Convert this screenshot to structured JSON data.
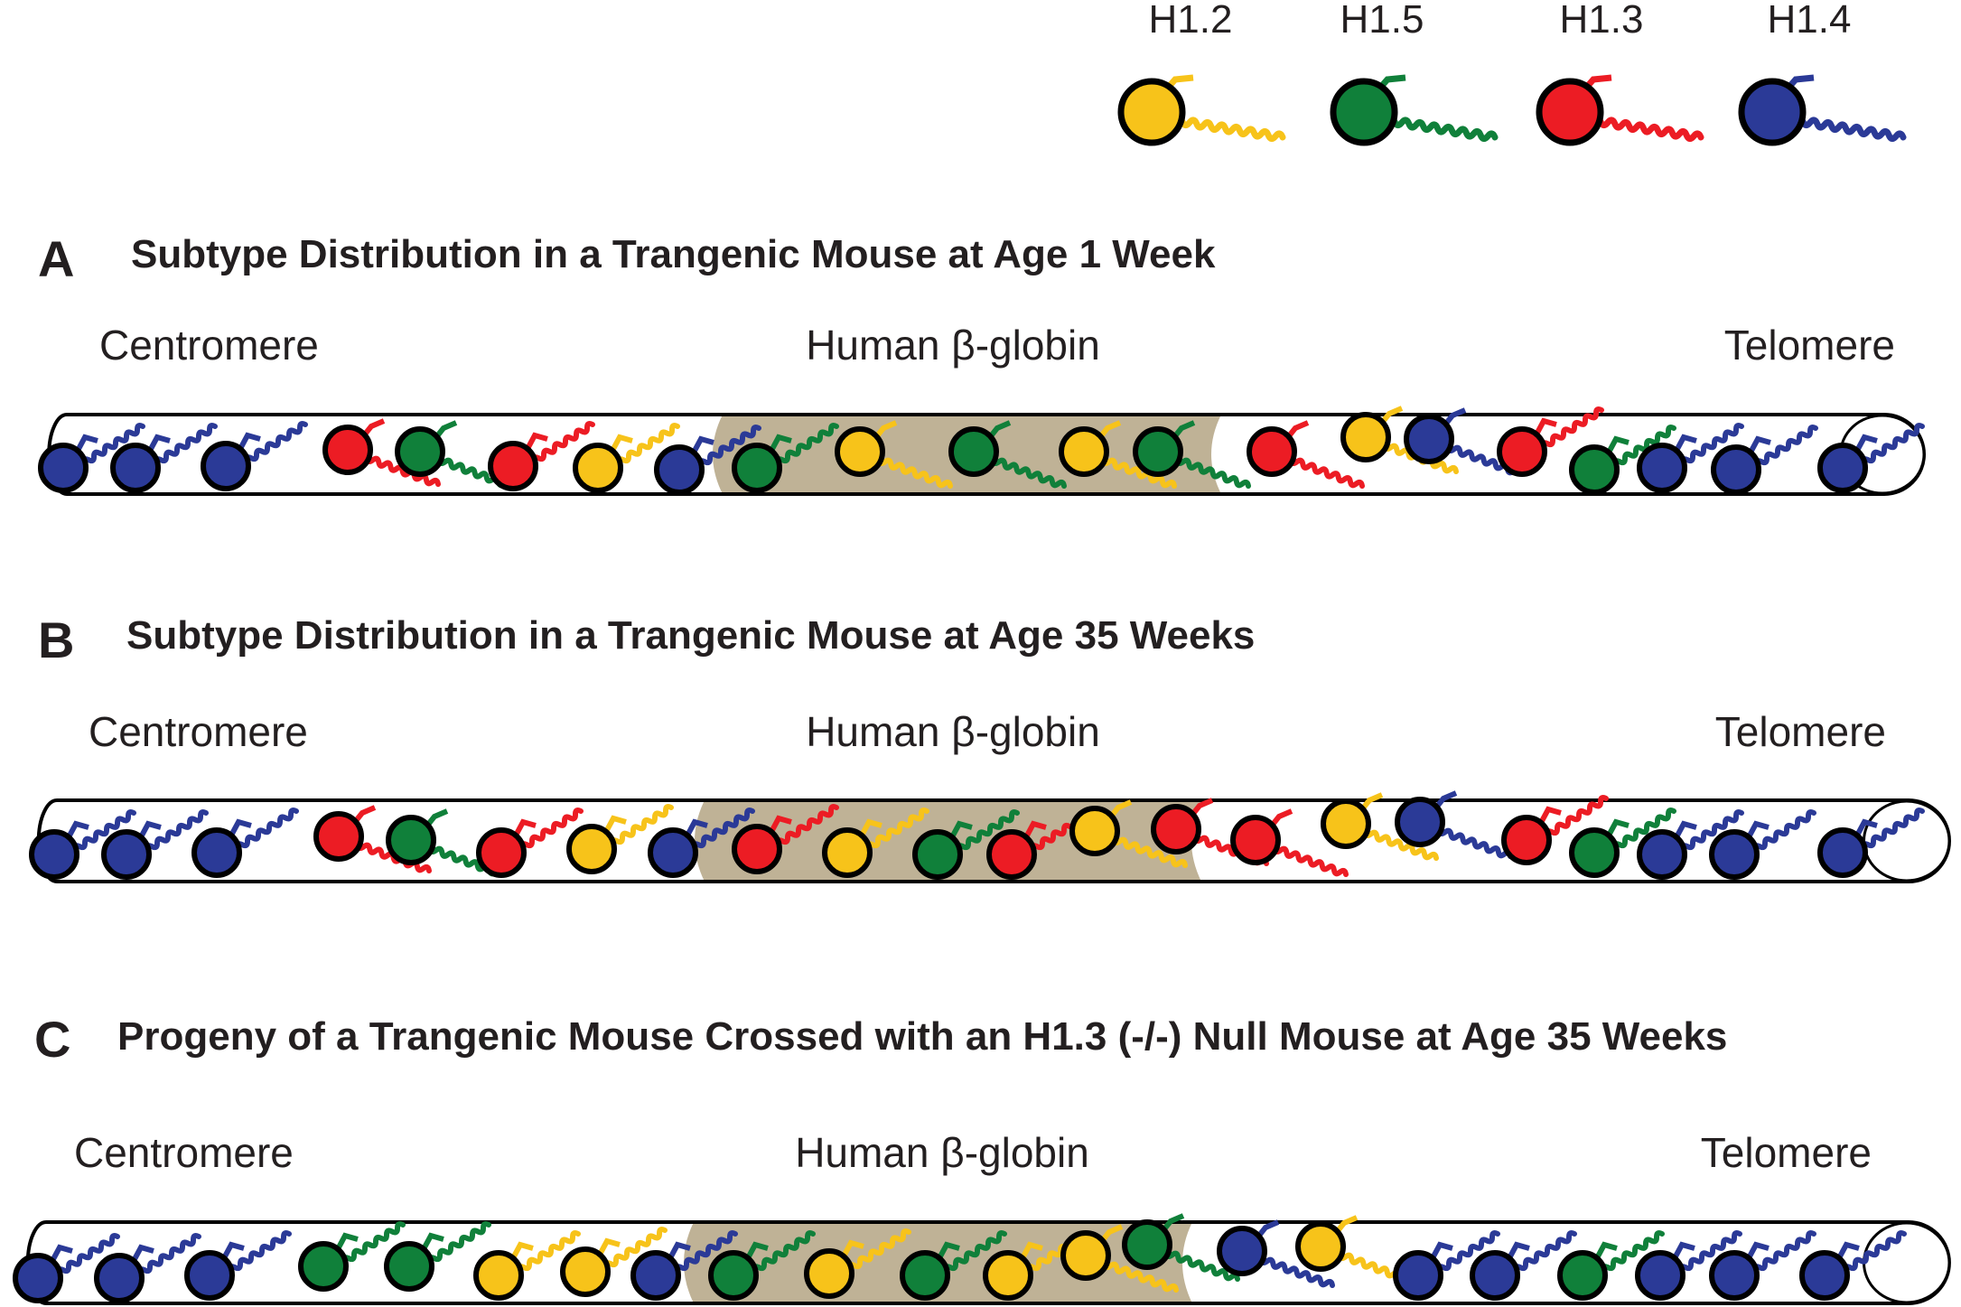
{
  "colors": {
    "H1.2": "#f7c31a",
    "H1.5": "#10803a",
    "H1.3": "#ec1c24",
    "H1.4": "#2b3a97",
    "globin_region": "#bfb296",
    "outline": "#000000"
  },
  "legend": [
    {
      "label": "H1.2",
      "subtype": "H1.2"
    },
    {
      "label": "H1.5",
      "subtype": "H1.5"
    },
    {
      "label": "H1.3",
      "subtype": "H1.3"
    },
    {
      "label": "H1.4",
      "subtype": "H1.4"
    }
  ],
  "panels": [
    {
      "letter": "A",
      "title": "Subtype Distribution in a Trangenic Mouse at Age 1 Week",
      "labels": {
        "left": "Centromere",
        "center": "Human β-globin",
        "right": "Telomere"
      },
      "histones": [
        "H1.4",
        "H1.4",
        "H1.4",
        "H1.3",
        "H1.5",
        "H1.3",
        "H1.2",
        "H1.4",
        "H1.5",
        "H1.2",
        "H1.5",
        "H1.2",
        "H1.5",
        "H1.3",
        "H1.2",
        "H1.4",
        "H1.3",
        "H1.5",
        "H1.4",
        "H1.4",
        "H1.4"
      ]
    },
    {
      "letter": "B",
      "title": "Subtype Distribution in a Trangenic Mouse at Age 35 Weeks",
      "labels": {
        "left": "Centromere",
        "center": "Human β-globin",
        "right": "Telomere"
      },
      "histones": [
        "H1.4",
        "H1.4",
        "H1.4",
        "H1.3",
        "H1.5",
        "H1.3",
        "H1.2",
        "H1.4",
        "H1.3",
        "H1.2",
        "H1.5",
        "H1.3",
        "H1.2",
        "H1.3",
        "H1.3",
        "H1.2",
        "H1.4",
        "H1.3",
        "H1.5",
        "H1.4",
        "H1.4",
        "H1.4"
      ]
    },
    {
      "letter": "C",
      "title": "Progeny of a Trangenic Mouse Crossed with an H1.3 (-/-) Null Mouse at Age 35 Weeks",
      "labels": {
        "left": "Centromere",
        "center": "Human β-globin",
        "right": "Telomere"
      },
      "histones": [
        "H1.4",
        "H1.4",
        "H1.4",
        "H1.5",
        "H1.5",
        "H1.2",
        "H1.2",
        "H1.4",
        "H1.5",
        "H1.2",
        "H1.5",
        "H1.2",
        "H1.2",
        "H1.5",
        "H1.4",
        "H1.2",
        "H1.4",
        "H1.4",
        "H1.5",
        "H1.4",
        "H1.4",
        "H1.4"
      ]
    }
  ]
}
